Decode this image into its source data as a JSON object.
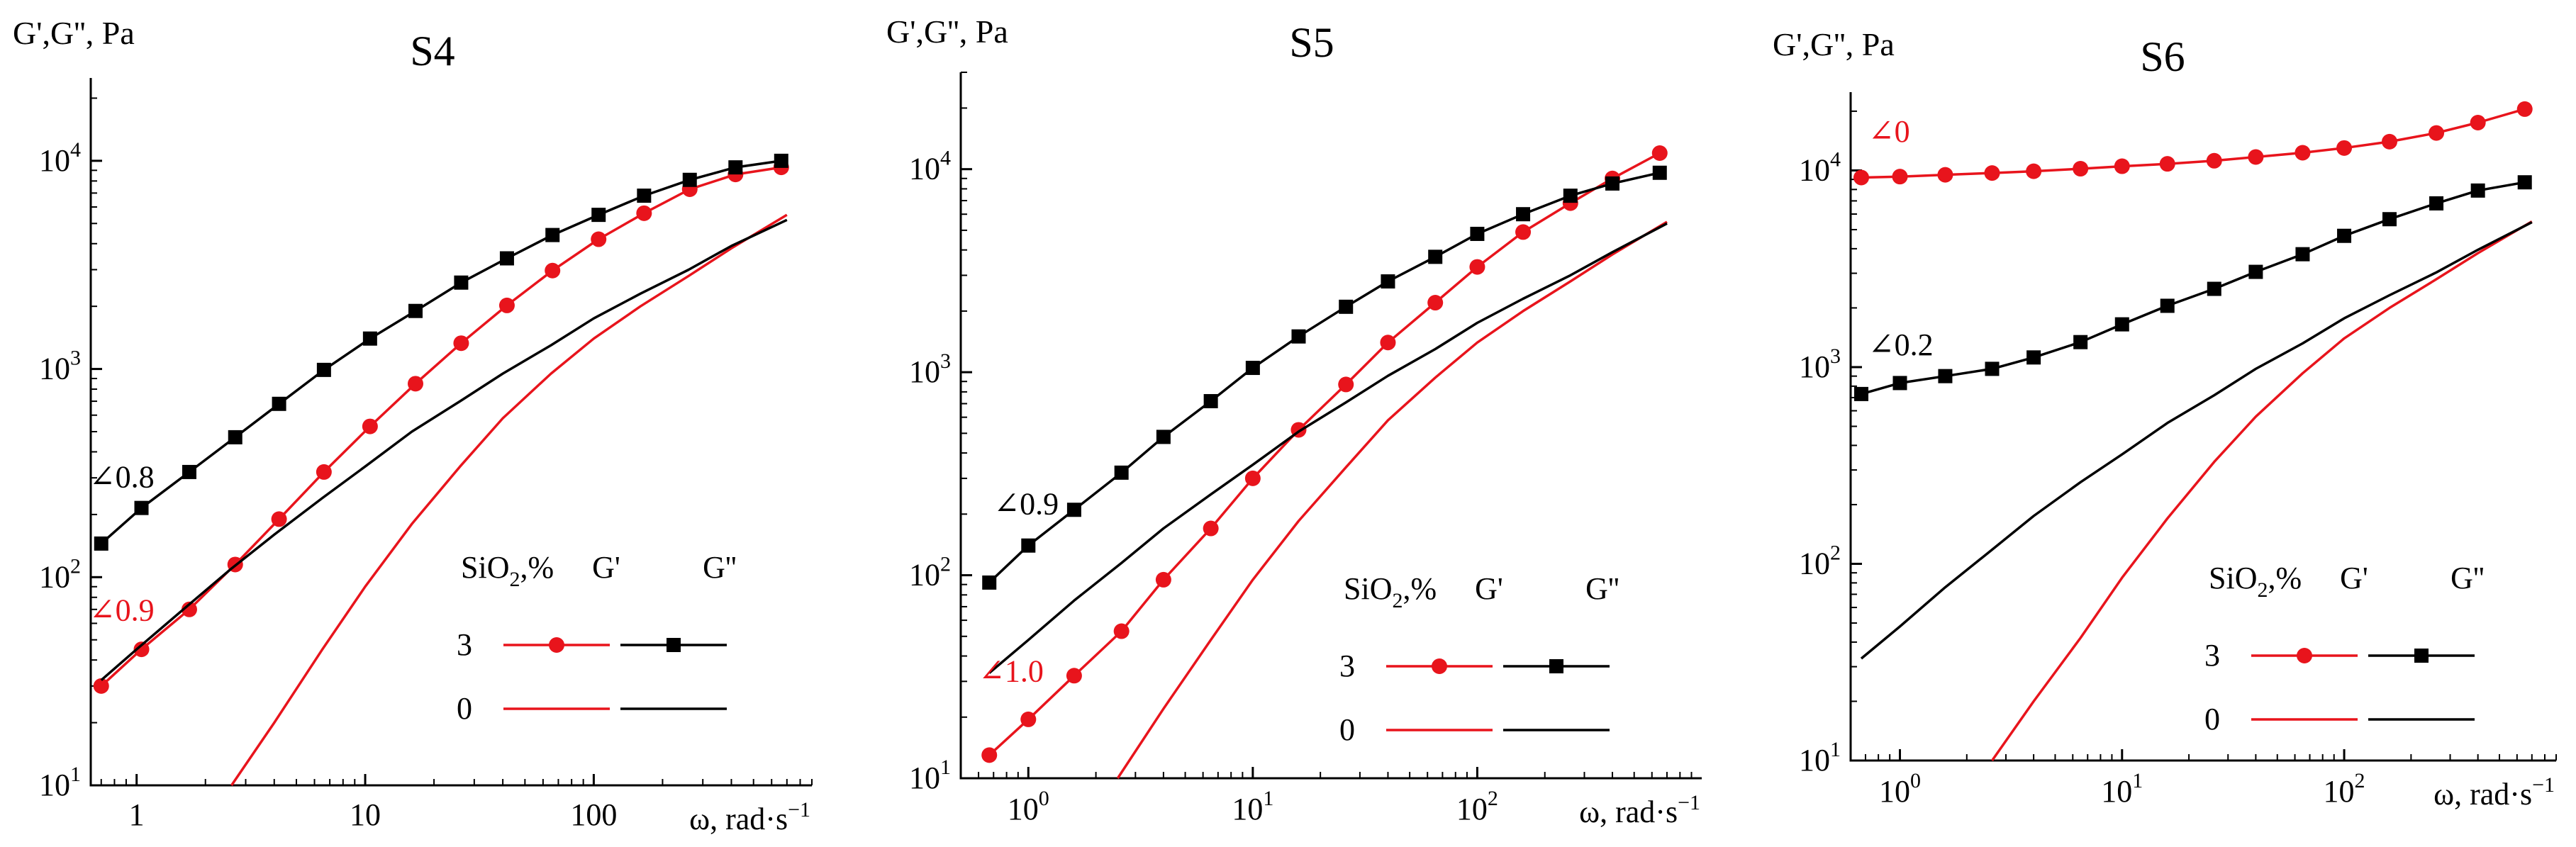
{
  "colors": {
    "red": "#e8141c",
    "black": "#000000"
  },
  "chart_data": [
    {
      "type": "line",
      "title": "S4",
      "ylabel": "G',G'', Pa",
      "xlabel": "ω, rad·s⁻¹",
      "xscale": "log",
      "yscale": "log",
      "xlim": [
        0.63,
        900
      ],
      "ylim": [
        10,
        25000
      ],
      "xticks": [
        {
          "v": 1,
          "t": "1"
        },
        {
          "v": 10,
          "t": "10"
        },
        {
          "v": 100,
          "t": "100"
        }
      ],
      "yticks": [
        {
          "v": 10,
          "b": "10",
          "e": "1"
        },
        {
          "v": 100,
          "b": "10",
          "e": "2"
        },
        {
          "v": 1000,
          "b": "10",
          "e": "3"
        },
        {
          "v": 10000,
          "b": "10",
          "e": "4"
        }
      ],
      "series": [
        {
          "name": "G' 3% SiO2",
          "color": "red",
          "marker": "circle",
          "x": [
            0.7,
            1.05,
            1.7,
            2.7,
            4.2,
            6.6,
            10.5,
            16.6,
            26.3,
            41.7,
            66,
            105,
            166,
            263,
            417,
            661
          ],
          "y": [
            30,
            45,
            70,
            115,
            190,
            320,
            530,
            850,
            1330,
            2020,
            2970,
            4200,
            5600,
            7300,
            8600,
            9300
          ]
        },
        {
          "name": "G'' 3% SiO2",
          "color": "black",
          "marker": "square",
          "x": [
            0.7,
            1.05,
            1.7,
            2.7,
            4.2,
            6.6,
            10.5,
            16.6,
            26.3,
            41.7,
            66,
            105,
            166,
            263,
            417,
            661
          ],
          "y": [
            145,
            215,
            320,
            470,
            680,
            990,
            1400,
            1900,
            2600,
            3400,
            4400,
            5500,
            6800,
            8100,
            9300,
            10000
          ]
        },
        {
          "name": "G' 0% SiO2",
          "color": "red",
          "marker": "none",
          "x": [
            2.6,
            4,
            6.5,
            10,
            16,
            26,
            40,
            65,
            100,
            160,
            260,
            400,
            700
          ],
          "y": [
            10,
            20,
            45,
            90,
            180,
            340,
            580,
            950,
            1400,
            2000,
            2800,
            3800,
            5500
          ]
        },
        {
          "name": "G'' 0% SiO2",
          "color": "black",
          "marker": "none",
          "x": [
            0.7,
            1,
            1.6,
            2.6,
            4,
            6.5,
            10,
            16,
            26,
            40,
            65,
            100,
            160,
            260,
            400,
            700
          ],
          "y": [
            32,
            45,
            70,
            110,
            160,
            240,
            340,
            500,
            700,
            950,
            1300,
            1750,
            2300,
            3000,
            3900,
            5200
          ]
        }
      ],
      "slopes": [
        {
          "text": "∠0.8",
          "color": "black",
          "x": 0.62,
          "y": 270
        },
        {
          "text": "∠0.9",
          "color": "red",
          "x": 0.62,
          "y": 62
        }
      ],
      "legend": {
        "header": "SiO",
        "header_sub": "2",
        "header_suffix": ",%",
        "col1": "G'",
        "col2": "G''",
        "rows": [
          "3",
          "0"
        ]
      }
    },
    {
      "type": "line",
      "title": "S5",
      "ylabel": "G',G'', Pa",
      "xlabel": "ω, rad·s⁻¹",
      "xscale": "log",
      "yscale": "log",
      "xlim": [
        0.5,
        1000
      ],
      "ylim": [
        10,
        30000
      ],
      "xticks": [
        {
          "v": 1,
          "b": "10",
          "e": "0"
        },
        {
          "v": 10,
          "b": "10",
          "e": "1"
        },
        {
          "v": 100,
          "b": "10",
          "e": "2"
        }
      ],
      "yticks": [
        {
          "v": 10,
          "b": "10",
          "e": "1"
        },
        {
          "v": 100,
          "b": "10",
          "e": "2"
        },
        {
          "v": 1000,
          "b": "10",
          "e": "3"
        },
        {
          "v": 10000,
          "b": "10",
          "e": "4"
        }
      ],
      "series": [
        {
          "name": "G' 3% SiO2",
          "color": "red",
          "marker": "circle",
          "x": [
            0.67,
            1,
            1.6,
            2.6,
            4,
            6.5,
            10,
            16,
            26,
            40,
            65,
            100,
            160,
            260,
            400,
            650
          ],
          "y": [
            13,
            19.5,
            32,
            53,
            95,
            170,
            300,
            520,
            870,
            1400,
            2200,
            3300,
            4900,
            6800,
            9000,
            12000
          ]
        },
        {
          "name": "G'' 3% SiO2",
          "color": "black",
          "marker": "square",
          "x": [
            0.67,
            1,
            1.6,
            2.6,
            4,
            6.5,
            10,
            16,
            26,
            40,
            65,
            100,
            160,
            260,
            400,
            650
          ],
          "y": [
            92,
            140,
            210,
            320,
            480,
            720,
            1050,
            1500,
            2100,
            2800,
            3700,
            4800,
            6000,
            7400,
            8500,
            9600
          ]
        },
        {
          "name": "G' 0% SiO2",
          "color": "red",
          "marker": "none",
          "x": [
            2.5,
            4,
            6.5,
            10,
            16,
            26,
            40,
            65,
            100,
            160,
            260,
            400,
            700
          ],
          "y": [
            10,
            22,
            48,
            95,
            185,
            340,
            580,
            940,
            1400,
            2000,
            2800,
            3800,
            5500
          ]
        },
        {
          "name": "G'' 0% SiO2",
          "color": "black",
          "marker": "none",
          "x": [
            0.67,
            1,
            1.6,
            2.6,
            4,
            6.5,
            10,
            16,
            26,
            40,
            65,
            100,
            160,
            260,
            400,
            700
          ],
          "y": [
            33,
            48,
            75,
            115,
            170,
            250,
            350,
            510,
            710,
            960,
            1300,
            1750,
            2300,
            3000,
            3900,
            5400
          ]
        }
      ],
      "slopes": [
        {
          "text": "∠0.9",
          "color": "black",
          "x": 0.7,
          "y": 200
        },
        {
          "text": "∠1.0",
          "color": "red",
          "x": 0.6,
          "y": 30
        }
      ],
      "legend": {
        "header": "SiO",
        "header_sub": "2",
        "header_suffix": ",%",
        "col1": "G'",
        "col2": "G''",
        "rows": [
          "3",
          "0"
        ]
      }
    },
    {
      "type": "line",
      "title": "S6",
      "ylabel": "G',G'', Pa",
      "xlabel": "ω, rad·s⁻¹",
      "xscale": "log",
      "yscale": "log",
      "xlim": [
        0.6,
        900
      ],
      "ylim": [
        10,
        25000
      ],
      "xticks": [
        {
          "v": 1,
          "b": "10",
          "e": "0"
        },
        {
          "v": 10,
          "b": "10",
          "e": "1"
        },
        {
          "v": 100,
          "b": "10",
          "e": "2"
        }
      ],
      "yticks": [
        {
          "v": 10,
          "b": "10",
          "e": "1"
        },
        {
          "v": 100,
          "b": "10",
          "e": "2"
        },
        {
          "v": 1000,
          "b": "10",
          "e": "3"
        },
        {
          "v": 10000,
          "b": "10",
          "e": "4"
        }
      ],
      "series": [
        {
          "name": "G' 3% SiO2",
          "color": "red",
          "marker": "circle",
          "x": [
            0.67,
            1,
            1.6,
            2.6,
            4,
            6.5,
            10,
            16,
            26,
            40,
            65,
            100,
            160,
            260,
            400,
            650
          ],
          "y": [
            9200,
            9300,
            9500,
            9700,
            9900,
            10200,
            10500,
            10800,
            11200,
            11700,
            12300,
            13000,
            14000,
            15500,
            17500,
            20500
          ]
        },
        {
          "name": "G'' 3% SiO2",
          "color": "black",
          "marker": "square",
          "x": [
            0.67,
            1,
            1.6,
            2.6,
            4,
            6.5,
            10,
            16,
            26,
            40,
            65,
            100,
            160,
            260,
            400,
            650
          ],
          "y": [
            730,
            830,
            900,
            980,
            1120,
            1340,
            1650,
            2050,
            2500,
            3050,
            3750,
            4650,
            5650,
            6800,
            7900,
            8700
          ]
        },
        {
          "name": "G' 0% SiO2",
          "color": "red",
          "marker": "none",
          "x": [
            2.6,
            4,
            6.5,
            10,
            16,
            26,
            40,
            65,
            100,
            160,
            260,
            400,
            700
          ],
          "y": [
            10,
            20,
            42,
            85,
            170,
            330,
            560,
            930,
            1400,
            2000,
            2800,
            3800,
            5500
          ]
        },
        {
          "name": "G'' 0% SiO2",
          "color": "black",
          "marker": "none",
          "x": [
            0.67,
            1,
            1.6,
            2.6,
            4,
            6.5,
            10,
            16,
            26,
            40,
            65,
            100,
            160,
            260,
            400,
            700
          ],
          "y": [
            33,
            48,
            76,
            118,
            175,
            260,
            360,
            520,
            720,
            980,
            1320,
            1770,
            2320,
            3030,
            3950,
            5450
          ]
        }
      ],
      "slopes": [
        {
          "text": "∠0",
          "color": "red",
          "x": 0.72,
          "y": 14000
        },
        {
          "text": "∠0.2",
          "color": "black",
          "x": 0.72,
          "y": 1150
        }
      ],
      "legend": {
        "header": "SiO",
        "header_sub": "2",
        "header_suffix": ",%",
        "col1": "G'",
        "col2": "G''",
        "rows": [
          "3",
          "0"
        ]
      }
    }
  ]
}
